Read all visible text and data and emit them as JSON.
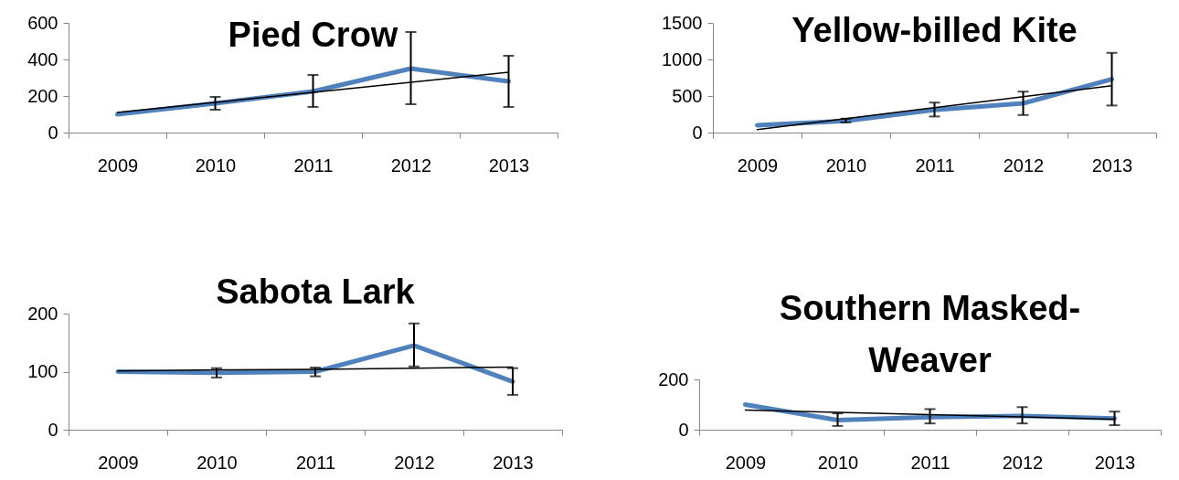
{
  "chart_data": [
    {
      "type": "line",
      "title": "Pied Crow",
      "categories": [
        "2009",
        "2010",
        "2011",
        "2012",
        "2013"
      ],
      "ylim": [
        0,
        600
      ],
      "yticks": [
        0,
        200,
        400,
        600
      ],
      "series": [
        {
          "color": "#4f81bd",
          "values": [
            100,
            160,
            225,
            350,
            280
          ],
          "errors": [
            null,
            [
              125,
              195
            ],
            [
              140,
              315
            ],
            [
              155,
              550
            ],
            [
              140,
              420
            ]
          ]
        },
        {
          "type": "line",
          "color": "#000000",
          "values": [
            110,
            165,
            220,
            275,
            330
          ]
        }
      ]
    },
    {
      "type": "line",
      "title": "Yellow-billed Kite",
      "categories": [
        "2009",
        "2010",
        "2011",
        "2012",
        "2013"
      ],
      "ylim": [
        0,
        1500
      ],
      "yticks": [
        0,
        500,
        1000,
        1500
      ],
      "series": [
        {
          "color": "#4f81bd",
          "values": [
            100,
            160,
            310,
            400,
            730
          ],
          "errors": [
            null,
            [
              140,
              190
            ],
            [
              220,
              410
            ],
            [
              240,
              560
            ],
            [
              370,
              1090
            ]
          ]
        },
        {
          "type": "line",
          "color": "#000000",
          "values": [
            40,
            190,
            340,
            490,
            640
          ]
        }
      ]
    },
    {
      "type": "line",
      "title": "Sabota Lark",
      "categories": [
        "2009",
        "2010",
        "2011",
        "2012",
        "2013"
      ],
      "ylim": [
        0,
        200
      ],
      "yticks": [
        0,
        100,
        200
      ],
      "series": [
        {
          "color": "#4f81bd",
          "values": [
            100,
            98,
            100,
            145,
            83
          ],
          "errors": [
            null,
            [
              90,
              106
            ],
            [
              92,
              107
            ],
            [
              109,
              183
            ],
            [
              60,
              106
            ]
          ]
        },
        {
          "type": "line",
          "color": "#000000",
          "values": [
            101,
            103,
            104,
            106,
            108
          ]
        }
      ]
    },
    {
      "type": "line",
      "title": "Southern Masked-Weaver",
      "categories": [
        "2009",
        "2010",
        "2011",
        "2012",
        "2013"
      ],
      "ylim": [
        0,
        200
      ],
      "yticks": [
        0,
        200
      ],
      "series": [
        {
          "color": "#4f81bd",
          "values": [
            100,
            38,
            50,
            55,
            45
          ],
          "errors": [
            null,
            [
              15,
              65
            ],
            [
              25,
              82
            ],
            [
              25,
              90
            ],
            [
              18,
              72
            ]
          ]
        },
        {
          "type": "line",
          "color": "#000000",
          "values": [
            78,
            69,
            60,
            51,
            42
          ]
        }
      ]
    }
  ]
}
